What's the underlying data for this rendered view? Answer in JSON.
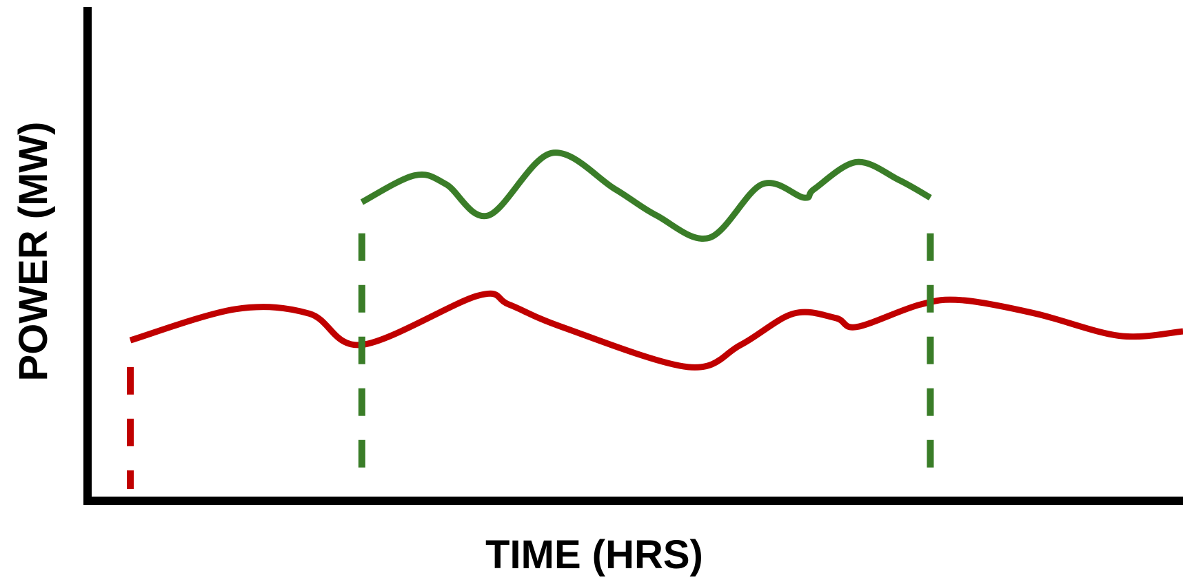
{
  "chart_data": {
    "type": "line",
    "title": "",
    "xlabel": "TIME (HRS)",
    "ylabel": "POWER (MW)",
    "xlim": [
      0,
      100
    ],
    "ylim": [
      0,
      100
    ],
    "grid": false,
    "legend": "none",
    "series": [
      {
        "color": "#c00000",
        "line_style": "solid",
        "x": [
          0,
          10,
          17,
          22,
          33,
          36,
          41,
          53,
          58,
          63,
          67,
          69,
          75,
          79,
          86,
          94,
          100
        ],
        "y": [
          36,
          43,
          42,
          35,
          46,
          44,
          39,
          30,
          35,
          42,
          41,
          39,
          44,
          45,
          42,
          37,
          38
        ]
      },
      {
        "color": "#3a7d28",
        "line_style": "solid",
        "x": [
          22,
          27,
          30,
          34,
          40,
          46,
          50,
          55,
          60,
          64,
          65,
          69,
          73,
          76
        ],
        "y": [
          67,
          73,
          71,
          64,
          78,
          70,
          64,
          59,
          71,
          68,
          70,
          76,
          72,
          68
        ]
      }
    ],
    "annotations": [
      {
        "type": "vline",
        "x": 0,
        "y_top": 30,
        "color": "#c00000",
        "style": "dashed"
      },
      {
        "type": "vline",
        "x": 22,
        "y_top": 60,
        "color": "#3a7d28",
        "style": "dashed"
      },
      {
        "type": "vline",
        "x": 76,
        "y_top": 60,
        "color": "#3a7d28",
        "style": "dashed"
      }
    ],
    "colors": {
      "axis": "#000000",
      "red": "#c00000",
      "green": "#3a7d28"
    }
  }
}
